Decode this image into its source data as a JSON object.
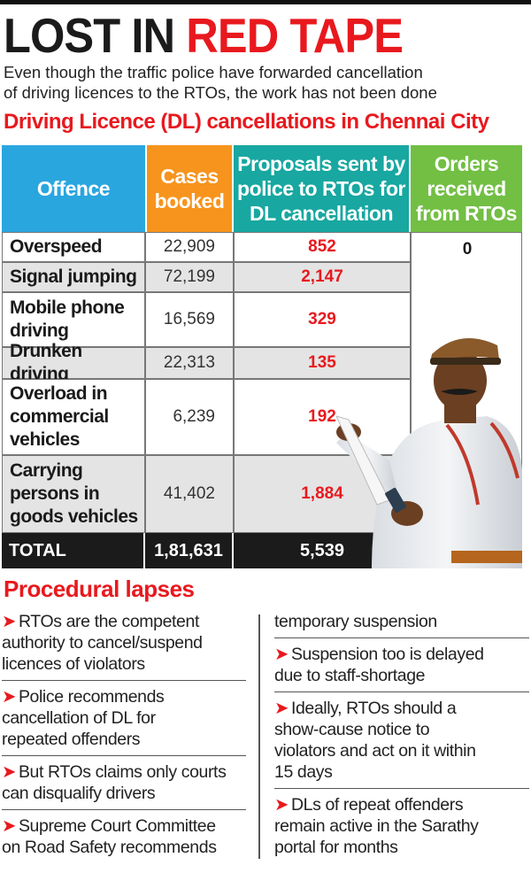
{
  "headline": {
    "part1": "LOST IN ",
    "part2": "RED TAPE"
  },
  "intro": [
    "Even though the traffic police have forwarded cancellation",
    "of driving licences to the RTOs, the work has not been done"
  ],
  "subhead": "Driving Licence (DL) cancellations in Chennai City",
  "table": {
    "headers": {
      "offence": "Offence",
      "cases": [
        "Cases",
        "booked"
      ],
      "proposals": [
        "Proposals sent by",
        "police to RTOs for",
        "DL cancellation"
      ],
      "orders": [
        "Orders",
        "received",
        "from RTOs"
      ]
    },
    "rows": [
      {
        "offence": [
          "Overspeed"
        ],
        "cases": "22,909",
        "proposals": "852"
      },
      {
        "offence": [
          "Signal jumping"
        ],
        "cases": "72,199",
        "proposals": "2,147"
      },
      {
        "offence": [
          "Mobile phone",
          "driving"
        ],
        "cases": "16,569",
        "proposals": "329"
      },
      {
        "offence": [
          "Drunken driving"
        ],
        "cases": "22,313",
        "proposals": "135"
      },
      {
        "offence": [
          "Overload in",
          "commercial",
          "vehicles"
        ],
        "cases": "6,239",
        "proposals": "192"
      },
      {
        "offence": [
          "Carrying",
          "persons in",
          "goods vehicles"
        ],
        "cases": "41,402",
        "proposals": "1,884"
      }
    ],
    "orders_received": "0",
    "total": {
      "label": "TOTAL",
      "cases": "1,81,631",
      "proposals": "5,539"
    }
  },
  "procedural": {
    "title": "Procedural lapses",
    "left": [
      [
        "RTOs are the competent",
        "authority to cancel/suspend",
        "licences of violators"
      ],
      [
        "Police recommends",
        "cancellation of DL for",
        "repeated offenders"
      ],
      [
        "But RTOs claims only courts",
        "can disqualify drivers"
      ],
      [
        "Supreme Court Committee",
        "on Road Safety recommends"
      ]
    ],
    "right_continuation": "temporary suspension",
    "right": [
      [
        "Suspension too is delayed",
        "due to staff-shortage"
      ],
      [
        "Ideally, RTOs should a",
        "show-cause notice to",
        "violators and act on it within",
        "15 days"
      ],
      [
        "DLs of repeat offenders",
        "remain active in the Sarathy",
        "portal for months"
      ]
    ],
    "arrow": "➤"
  }
}
